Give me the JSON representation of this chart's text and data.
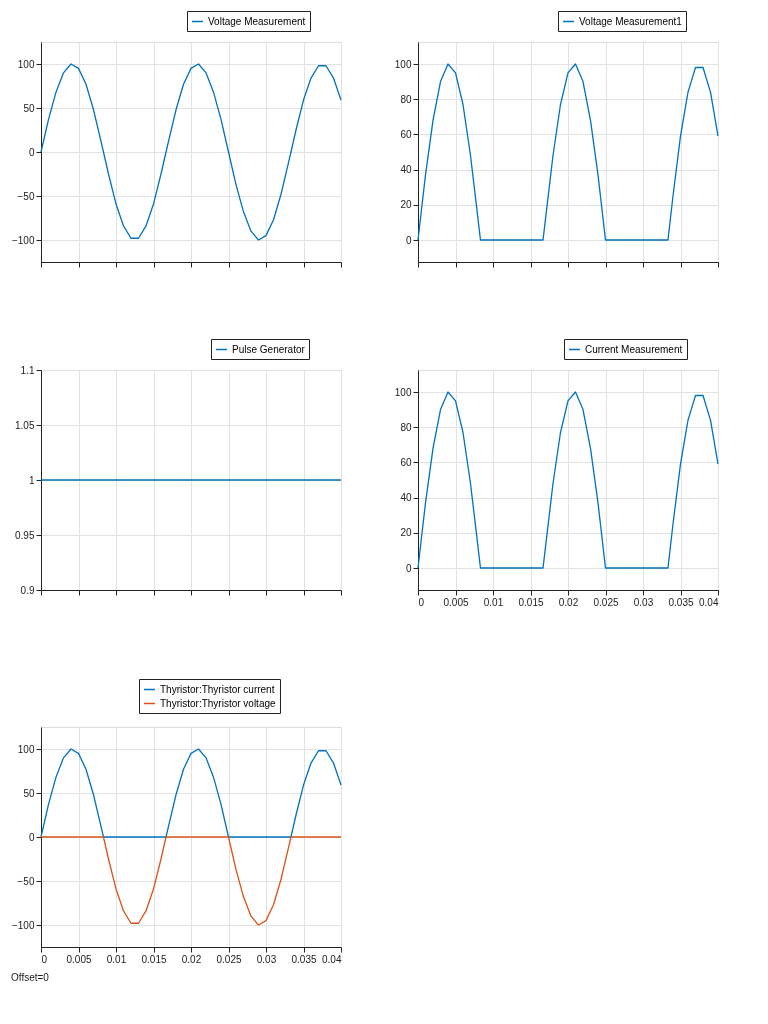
{
  "chart_data": [
    {
      "type": "line",
      "x": [
        0,
        0.001,
        0.002,
        0.003,
        0.004,
        0.005,
        0.006,
        0.007,
        0.008,
        0.00833,
        0.009,
        0.01,
        0.011,
        0.012,
        0.013,
        0.014,
        0.015,
        0.016,
        0.01667,
        0.017,
        0.018,
        0.019,
        0.02,
        0.021,
        0.022,
        0.023,
        0.024,
        0.025,
        0.026,
        0.027,
        0.028,
        0.029,
        0.03,
        0.031,
        0.032,
        0.033,
        0.03333,
        0.034,
        0.035,
        0.036,
        0.037,
        0.038,
        0.039,
        0.04
      ],
      "series": [
        {
          "name": "Voltage Measurement",
          "color": "#0072bd",
          "values": [
            0,
            37,
            68,
            90,
            100,
            95,
            77,
            48,
            12,
            0,
            -25,
            -59,
            -84,
            -98,
            -98,
            -84,
            -59,
            -25,
            0,
            12,
            48,
            77,
            95,
            100,
            90,
            68,
            37,
            0,
            -37,
            -68,
            -90,
            -100,
            -95,
            -77,
            -48,
            -12,
            0,
            25,
            59,
            84,
            98,
            98,
            84,
            59
          ]
        }
      ],
      "xlim": [
        0,
        0.04
      ],
      "xticks": [
        0,
        0.005,
        0.01,
        0.015,
        0.02,
        0.025,
        0.03,
        0.035,
        0.04
      ],
      "ylim": [
        -125,
        125
      ],
      "yticks": [
        -100,
        -50,
        0,
        50,
        100
      ],
      "grid": true,
      "legend": "top right",
      "tick_labels": "y"
    },
    {
      "type": "line",
      "x": [
        0,
        0.001,
        0.002,
        0.003,
        0.004,
        0.005,
        0.006,
        0.007,
        0.008,
        0.00833,
        0.009,
        0.01,
        0.011,
        0.012,
        0.013,
        0.014,
        0.015,
        0.016,
        0.01667,
        0.017,
        0.018,
        0.019,
        0.02,
        0.021,
        0.022,
        0.023,
        0.024,
        0.025,
        0.026,
        0.027,
        0.028,
        0.029,
        0.03,
        0.031,
        0.032,
        0.033,
        0.03333,
        0.034,
        0.035,
        0.036,
        0.037,
        0.038,
        0.039,
        0.04
      ],
      "series": [
        {
          "name": "Voltage Measurement1",
          "color": "#0072bd",
          "values": [
            0,
            37,
            68,
            90,
            100,
            95,
            77,
            48,
            12,
            0,
            0,
            0,
            0,
            0,
            0,
            0,
            0,
            0,
            0,
            12,
            48,
            77,
            95,
            100,
            90,
            68,
            37,
            0,
            0,
            0,
            0,
            0,
            0,
            0,
            0,
            0,
            0,
            25,
            59,
            84,
            98,
            98,
            84,
            59
          ]
        }
      ],
      "xlim": [
        0,
        0.04
      ],
      "xticks": [
        0,
        0.005,
        0.01,
        0.015,
        0.02,
        0.025,
        0.03,
        0.035,
        0.04
      ],
      "ylim": [
        -12.5,
        112.5
      ],
      "yticks": [
        0,
        20,
        40,
        60,
        80,
        100
      ],
      "grid": true,
      "legend": "top right",
      "tick_labels": "y"
    },
    {
      "type": "line",
      "x": [
        0,
        0.04
      ],
      "series": [
        {
          "name": "Pulse Generator",
          "color": "#0072bd",
          "values": [
            1,
            1
          ]
        }
      ],
      "xlim": [
        0,
        0.04
      ],
      "xticks": [
        0,
        0.005,
        0.01,
        0.015,
        0.02,
        0.025,
        0.03,
        0.035,
        0.04
      ],
      "ylim": [
        0.9,
        1.1
      ],
      "yticks": [
        0.9,
        0.95,
        1,
        1.05,
        1.1
      ],
      "grid": true,
      "legend": "top right",
      "tick_labels": "y"
    },
    {
      "type": "line",
      "x": [
        0,
        0.001,
        0.002,
        0.003,
        0.004,
        0.005,
        0.006,
        0.007,
        0.008,
        0.00833,
        0.009,
        0.01,
        0.011,
        0.012,
        0.013,
        0.014,
        0.015,
        0.016,
        0.01667,
        0.017,
        0.018,
        0.019,
        0.02,
        0.021,
        0.022,
        0.023,
        0.024,
        0.025,
        0.026,
        0.027,
        0.028,
        0.029,
        0.03,
        0.031,
        0.032,
        0.033,
        0.03333,
        0.034,
        0.035,
        0.036,
        0.037,
        0.038,
        0.039,
        0.04
      ],
      "series": [
        {
          "name": "Current Measurement",
          "color": "#0072bd",
          "values": [
            0,
            37,
            68,
            90,
            100,
            95,
            77,
            48,
            12,
            0,
            0,
            0,
            0,
            0,
            0,
            0,
            0,
            0,
            0,
            12,
            48,
            77,
            95,
            100,
            90,
            68,
            37,
            0,
            0,
            0,
            0,
            0,
            0,
            0,
            0,
            0,
            0,
            25,
            59,
            84,
            98,
            98,
            84,
            59
          ]
        }
      ],
      "xlim": [
        0,
        0.04
      ],
      "xticks": [
        0,
        0.005,
        0.01,
        0.015,
        0.02,
        0.025,
        0.03,
        0.035,
        0.04
      ],
      "ylim": [
        -12.5,
        112.5
      ],
      "yticks": [
        0,
        20,
        40,
        60,
        80,
        100
      ],
      "grid": true,
      "legend": "top right"
    },
    {
      "type": "line",
      "x": [
        0,
        0.001,
        0.002,
        0.003,
        0.004,
        0.005,
        0.006,
        0.007,
        0.008,
        0.00833,
        0.009,
        0.01,
        0.011,
        0.012,
        0.013,
        0.014,
        0.015,
        0.016,
        0.01667,
        0.017,
        0.018,
        0.019,
        0.02,
        0.021,
        0.022,
        0.023,
        0.024,
        0.025,
        0.026,
        0.027,
        0.028,
        0.029,
        0.03,
        0.031,
        0.032,
        0.033,
        0.03333,
        0.034,
        0.035,
        0.036,
        0.037,
        0.038,
        0.039,
        0.04
      ],
      "series": [
        {
          "name": "Thyristor:Thyristor current",
          "color": "#0072bd",
          "values": [
            0,
            37,
            68,
            90,
            100,
            95,
            77,
            48,
            12,
            0,
            0,
            0,
            0,
            0,
            0,
            0,
            0,
            0,
            0,
            12,
            48,
            77,
            95,
            100,
            90,
            68,
            37,
            0,
            0,
            0,
            0,
            0,
            0,
            0,
            0,
            0,
            0,
            25,
            59,
            84,
            98,
            98,
            84,
            59
          ]
        },
        {
          "name": "Thyristor:Thyristor voltage",
          "color": "#d95319",
          "values": [
            0,
            0,
            0,
            0,
            0,
            0,
            0,
            0,
            0,
            0,
            -25,
            -59,
            -84,
            -98,
            -98,
            -84,
            -59,
            -25,
            0,
            0,
            0,
            0,
            0,
            0,
            0,
            0,
            0,
            0,
            -37,
            -68,
            -90,
            -100,
            -95,
            -77,
            -48,
            -12,
            0,
            0,
            0,
            0,
            0,
            0,
            0,
            0
          ]
        }
      ],
      "xlim": [
        0,
        0.04
      ],
      "xticks": [
        0,
        0.005,
        0.01,
        0.015,
        0.02,
        0.025,
        0.03,
        0.035,
        0.04
      ],
      "ylim": [
        -125,
        125
      ],
      "yticks": [
        -100,
        -50,
        0,
        50,
        100
      ],
      "grid": true,
      "legend": "top right",
      "annotations": [
        "Offset=0"
      ]
    }
  ]
}
